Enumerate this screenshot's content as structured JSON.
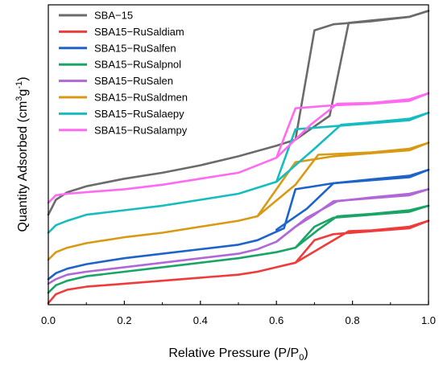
{
  "chart_data": {
    "type": "line",
    "title": "",
    "xlabel": "Relative Pressure (P/P",
    "xlabel_subscript": "0",
    "xlabel_suffix": ")",
    "ylabel": "Quantity Adsorbed (cm",
    "ylabel_sup1": "3",
    "ylabel_mid": "g",
    "ylabel_sup2": "-1",
    "ylabel_suffix": ")",
    "xlim": [
      0.0,
      1.0
    ],
    "ylim": [
      0,
      100
    ],
    "x_ticks": [
      "0.0",
      "0.2",
      "0.4",
      "0.6",
      "0.8",
      "1.0"
    ],
    "y_ticks_shown": false,
    "legend_position": "top-left",
    "series": [
      {
        "name": "SBA−15",
        "color": "#6b6b6b",
        "adsorption": [
          [
            0.0,
            30
          ],
          [
            0.02,
            35
          ],
          [
            0.05,
            37.5
          ],
          [
            0.1,
            39.5
          ],
          [
            0.2,
            42
          ],
          [
            0.3,
            44
          ],
          [
            0.4,
            46.5
          ],
          [
            0.5,
            49.5
          ],
          [
            0.6,
            53
          ],
          [
            0.65,
            55
          ],
          [
            0.7,
            91.5
          ],
          [
            0.75,
            93.5
          ],
          [
            0.85,
            94.5
          ],
          [
            0.95,
            96
          ],
          [
            1.0,
            98
          ]
        ],
        "desorption": [
          [
            1.0,
            98
          ],
          [
            0.95,
            96
          ],
          [
            0.85,
            94.8
          ],
          [
            0.79,
            94
          ],
          [
            0.74,
            63
          ],
          [
            0.65,
            55
          ]
        ]
      },
      {
        "name": "SBA15−RuSaldiam",
        "color": "#ee3b3b",
        "adsorption": [
          [
            0.0,
            0.5
          ],
          [
            0.02,
            3.5
          ],
          [
            0.05,
            5
          ],
          [
            0.1,
            6
          ],
          [
            0.2,
            7
          ],
          [
            0.3,
            8
          ],
          [
            0.4,
            9
          ],
          [
            0.5,
            10
          ],
          [
            0.55,
            11
          ],
          [
            0.6,
            12.5
          ],
          [
            0.65,
            14
          ],
          [
            0.7,
            21.5
          ],
          [
            0.75,
            23.5
          ],
          [
            0.85,
            24.5
          ],
          [
            0.95,
            25.5
          ],
          [
            1.0,
            28
          ]
        ],
        "desorption": [
          [
            1.0,
            28
          ],
          [
            0.95,
            26
          ],
          [
            0.85,
            24.8
          ],
          [
            0.79,
            24.5
          ],
          [
            0.73,
            20
          ],
          [
            0.65,
            14
          ]
        ]
      },
      {
        "name": "SBA15−RuSalfen",
        "color": "#1e64c8",
        "adsorption": [
          [
            0.0,
            8.5
          ],
          [
            0.02,
            10.5
          ],
          [
            0.05,
            12
          ],
          [
            0.1,
            13.5
          ],
          [
            0.2,
            15.5
          ],
          [
            0.3,
            17
          ],
          [
            0.4,
            18.5
          ],
          [
            0.5,
            20
          ],
          [
            0.55,
            21.5
          ],
          [
            0.62,
            25.5
          ],
          [
            0.65,
            38.5
          ],
          [
            0.75,
            40.5
          ],
          [
            0.85,
            41.5
          ],
          [
            0.95,
            42.5
          ],
          [
            1.0,
            45
          ]
        ],
        "desorption": [
          [
            1.0,
            45
          ],
          [
            0.95,
            43
          ],
          [
            0.85,
            41.8
          ],
          [
            0.75,
            40.5
          ],
          [
            0.68,
            32
          ],
          [
            0.6,
            25
          ]
        ]
      },
      {
        "name": "SBA15−RuSalpnol",
        "color": "#1aa567",
        "adsorption": [
          [
            0.0,
            4
          ],
          [
            0.02,
            6.5
          ],
          [
            0.05,
            8
          ],
          [
            0.1,
            9.5
          ],
          [
            0.2,
            11
          ],
          [
            0.3,
            12.5
          ],
          [
            0.4,
            14
          ],
          [
            0.5,
            15.5
          ],
          [
            0.6,
            17.5
          ],
          [
            0.65,
            19
          ],
          [
            0.7,
            26
          ],
          [
            0.75,
            29
          ],
          [
            0.85,
            30
          ],
          [
            0.95,
            31
          ],
          [
            1.0,
            33
          ]
        ],
        "desorption": [
          [
            1.0,
            33
          ],
          [
            0.95,
            31.5
          ],
          [
            0.85,
            30.3
          ],
          [
            0.76,
            29.5
          ],
          [
            0.71,
            25
          ],
          [
            0.65,
            19
          ]
        ]
      },
      {
        "name": "SBA15−RuSalen",
        "color": "#b068d6",
        "adsorption": [
          [
            0.0,
            7
          ],
          [
            0.02,
            8.5
          ],
          [
            0.05,
            10
          ],
          [
            0.1,
            11
          ],
          [
            0.2,
            12.5
          ],
          [
            0.3,
            14
          ],
          [
            0.4,
            15.5
          ],
          [
            0.5,
            17
          ],
          [
            0.55,
            18.5
          ],
          [
            0.6,
            21
          ],
          [
            0.65,
            26
          ],
          [
            0.7,
            30
          ],
          [
            0.75,
            34.5
          ],
          [
            0.85,
            35.5
          ],
          [
            0.95,
            36.5
          ],
          [
            1.0,
            38.5
          ]
        ],
        "desorption": [
          [
            1.0,
            38.5
          ],
          [
            0.95,
            37
          ],
          [
            0.85,
            35.8
          ],
          [
            0.76,
            34.5
          ],
          [
            0.68,
            29
          ],
          [
            0.6,
            21
          ]
        ]
      },
      {
        "name": "SBA15−RuSaldmen",
        "color": "#d89a14",
        "adsorption": [
          [
            0.0,
            15
          ],
          [
            0.02,
            17.5
          ],
          [
            0.05,
            19
          ],
          [
            0.1,
            20.5
          ],
          [
            0.2,
            22.5
          ],
          [
            0.3,
            24
          ],
          [
            0.4,
            26
          ],
          [
            0.5,
            28
          ],
          [
            0.55,
            29.5
          ],
          [
            0.65,
            47.5
          ],
          [
            0.7,
            48.5
          ],
          [
            0.75,
            49.5
          ],
          [
            0.85,
            50.5
          ],
          [
            0.95,
            51.5
          ],
          [
            1.0,
            54
          ]
        ],
        "desorption": [
          [
            1.0,
            54
          ],
          [
            0.95,
            52
          ],
          [
            0.85,
            50.8
          ],
          [
            0.71,
            50
          ],
          [
            0.65,
            40
          ],
          [
            0.55,
            29.5
          ]
        ]
      },
      {
        "name": "SBA15−RuSalaepy",
        "color": "#16bcc0",
        "adsorption": [
          [
            0.0,
            24
          ],
          [
            0.02,
            26.5
          ],
          [
            0.05,
            28
          ],
          [
            0.1,
            30
          ],
          [
            0.2,
            31.5
          ],
          [
            0.3,
            33
          ],
          [
            0.4,
            35
          ],
          [
            0.5,
            37
          ],
          [
            0.6,
            41
          ],
          [
            0.65,
            58.5
          ],
          [
            0.75,
            59.5
          ],
          [
            0.85,
            60.5
          ],
          [
            0.95,
            61.5
          ],
          [
            1.0,
            64
          ]
        ],
        "desorption": [
          [
            1.0,
            64
          ],
          [
            0.95,
            62
          ],
          [
            0.85,
            60.8
          ],
          [
            0.77,
            60
          ],
          [
            0.7,
            52
          ],
          [
            0.6,
            41
          ]
        ]
      },
      {
        "name": "SBA15−RuSalampy",
        "color": "#ff6af0",
        "adsorption": [
          [
            0.0,
            34
          ],
          [
            0.02,
            36.5
          ],
          [
            0.05,
            37
          ],
          [
            0.1,
            37.5
          ],
          [
            0.2,
            38.5
          ],
          [
            0.3,
            40
          ],
          [
            0.4,
            42
          ],
          [
            0.5,
            44
          ],
          [
            0.6,
            49
          ],
          [
            0.65,
            65.5
          ],
          [
            0.7,
            66
          ],
          [
            0.75,
            66.5
          ],
          [
            0.85,
            67
          ],
          [
            0.95,
            68
          ],
          [
            1.0,
            70.5
          ]
        ],
        "desorption": [
          [
            1.0,
            70.5
          ],
          [
            0.95,
            68.5
          ],
          [
            0.85,
            67.3
          ],
          [
            0.76,
            67
          ],
          [
            0.69,
            60
          ],
          [
            0.6,
            49
          ]
        ]
      }
    ]
  }
}
